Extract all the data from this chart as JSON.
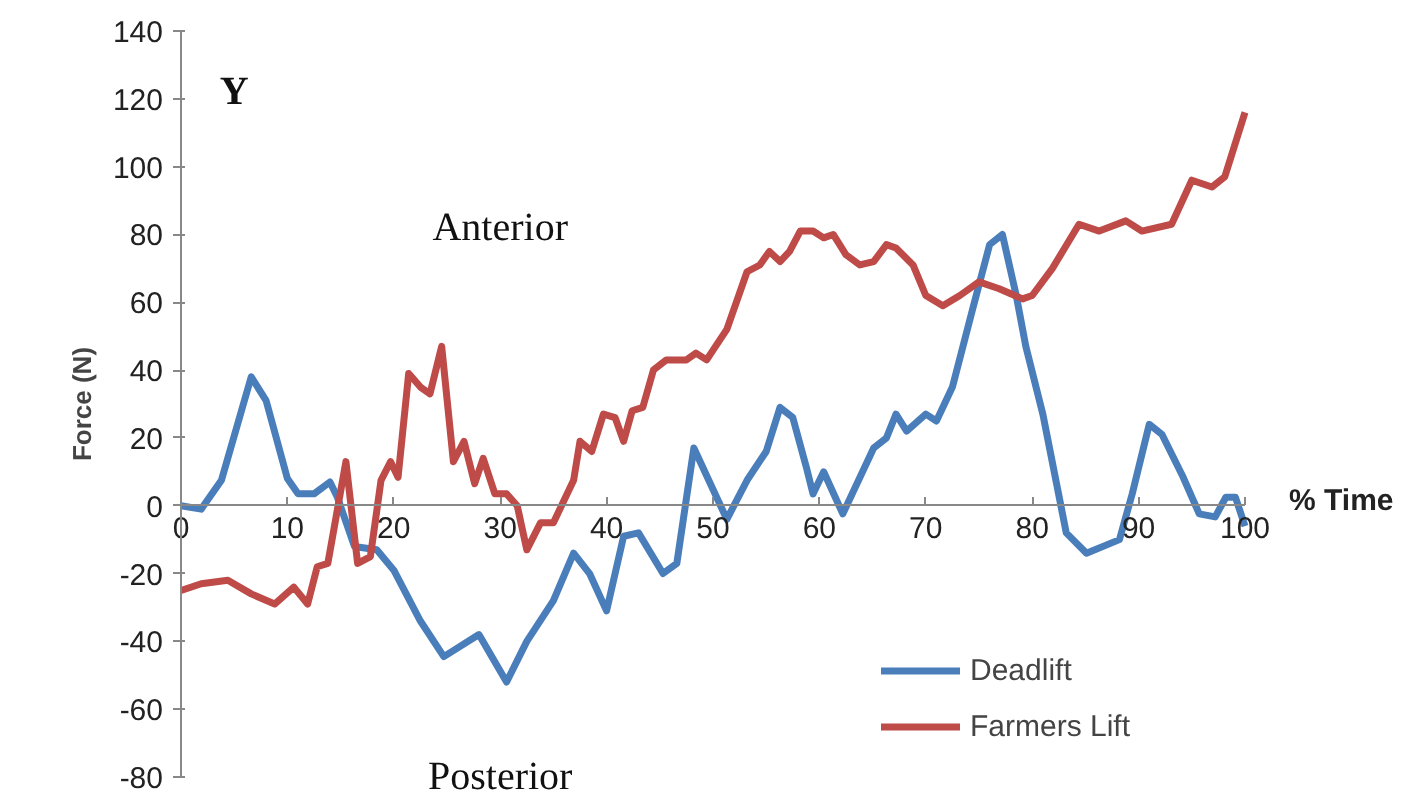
{
  "chart_data": {
    "type": "line",
    "xlabel": "% Time",
    "ylabel": "Force (N)",
    "annotations": [
      "Y",
      "Anterior",
      "Posterior"
    ],
    "xlim": [
      0,
      100
    ],
    "ylim": [
      -80,
      140
    ],
    "xticks": [
      0,
      10,
      20,
      30,
      40,
      50,
      60,
      70,
      80,
      90,
      100
    ],
    "yticks": [
      -80,
      -60,
      -40,
      -20,
      0,
      20,
      40,
      60,
      80,
      100,
      120,
      140
    ],
    "grid": false,
    "legend": "bottom right",
    "marker": "none",
    "line_style": "solid",
    "series": [
      {
        "name": "Deadlift",
        "color": "#4a7ebb",
        "x": [
          0,
          1.9,
          3.8,
          6.6,
          8,
          10,
          11,
          12.5,
          14,
          14.7,
          16.3,
          18.4,
          20,
          22.5,
          24.7,
          28,
          30.6,
          32.5,
          35,
          36.9,
          38.4,
          40,
          41.6,
          43,
          45.3,
          46.6,
          48.2,
          51.3,
          53.2,
          55,
          56.3,
          57.5,
          58.8,
          59.4,
          60.4,
          62.2,
          65.1,
          66.3,
          67.2,
          68.2,
          70,
          71,
          72.5,
          74.4,
          76,
          77.2,
          78.5,
          79.4,
          81,
          83.2,
          85.1,
          88.2,
          89.4,
          91,
          92.2,
          94.1,
          95.7,
          97.2,
          98.2,
          99.1,
          100
        ],
        "values": [
          0,
          -1,
          7.5,
          38,
          31,
          8,
          3.5,
          3.5,
          7,
          2.5,
          -12,
          -13,
          -19,
          -34,
          -44.5,
          -38,
          -52,
          -40,
          -28,
          -14,
          -20,
          -31,
          -9,
          -8,
          -20,
          -17,
          17,
          -4,
          7.5,
          16,
          29,
          26,
          11,
          3.5,
          10,
          -2.4,
          17,
          20,
          27,
          22,
          27,
          25,
          35,
          58,
          77,
          80,
          62,
          47,
          27,
          -8,
          -14,
          -10,
          3.5,
          24,
          21,
          9,
          -2.4,
          -3.3,
          2.5,
          2.5,
          -6
        ]
      },
      {
        "name": "Farmers Lift",
        "color": "#be4b48",
        "x": [
          0,
          1.9,
          4.4,
          6.6,
          8.8,
          10.6,
          11.9,
          12.8,
          13.8,
          15.5,
          16.6,
          17.8,
          18.8,
          19.7,
          20.4,
          21.4,
          22.5,
          23.4,
          24.5,
          25.6,
          26.6,
          27.6,
          28.4,
          29.5,
          30.6,
          31.6,
          32.5,
          33.8,
          35,
          36.9,
          37.5,
          38.6,
          39.7,
          40.8,
          41.6,
          42.4,
          43.4,
          44.4,
          45.6,
          47.5,
          48.4,
          49.4,
          51.3,
          53.2,
          54.4,
          55.3,
          56.3,
          57.2,
          58.2,
          59.4,
          60.4,
          61.3,
          62.5,
          63.8,
          65.1,
          66.3,
          67.2,
          68.8,
          70,
          71.6,
          73.2,
          75,
          76.9,
          79.1,
          80,
          81.9,
          84.4,
          86.3,
          88.8,
          90.3,
          93.1,
          95,
          96.9,
          98.1,
          100
        ],
        "values": [
          -25,
          -23,
          -22,
          -26,
          -29,
          -24,
          -29,
          -18,
          -17,
          13,
          -17,
          -15,
          7.5,
          13,
          8.4,
          39,
          35,
          33,
          47,
          13,
          19,
          6.5,
          14,
          3.5,
          3.5,
          0,
          -13,
          -5,
          -5,
          7.5,
          19,
          16,
          27,
          26,
          19,
          28,
          29,
          40,
          43,
          43,
          45,
          43,
          52,
          69,
          71,
          75,
          72,
          75,
          81,
          81,
          79,
          80,
          74,
          71,
          72,
          77,
          76,
          71,
          62,
          59,
          62,
          66,
          64,
          61,
          62,
          70,
          83,
          81,
          84,
          81,
          83,
          96,
          94,
          97,
          116
        ]
      }
    ]
  }
}
